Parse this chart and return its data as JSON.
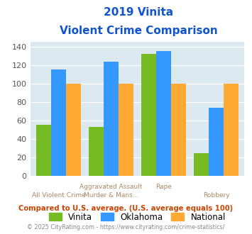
{
  "title_line1": "2019 Vinita",
  "title_line2": "Violent Crime Comparison",
  "cat_top_labels": [
    "",
    "Aggravated Assault",
    "Rape",
    ""
  ],
  "cat_bot_labels": [
    "All Violent Crime",
    "Murder & Mans...",
    "",
    "Robbery"
  ],
  "vinita": [
    55,
    53,
    132,
    24
  ],
  "oklahoma": [
    115,
    124,
    135,
    74
  ],
  "national": [
    100,
    100,
    100,
    100
  ],
  "vinita_color": "#77bb22",
  "oklahoma_color": "#3399ff",
  "national_color": "#ffaa33",
  "ylim": [
    0,
    145
  ],
  "yticks": [
    0,
    20,
    40,
    60,
    80,
    100,
    120,
    140
  ],
  "background_color": "#dce9f0",
  "title_color": "#1155cc",
  "xlabel_color": "#aa8866",
  "footnote1": "Compared to U.S. average. (U.S. average equals 100)",
  "footnote2": "© 2025 CityRating.com - https://www.cityrating.com/crime-statistics/",
  "footnote1_color": "#cc4400",
  "footnote2_color": "#888888",
  "legend_labels": [
    "Vinita",
    "Oklahoma",
    "National"
  ],
  "bar_width": 0.22,
  "group_positions": [
    0,
    0.78,
    1.56,
    2.34
  ]
}
